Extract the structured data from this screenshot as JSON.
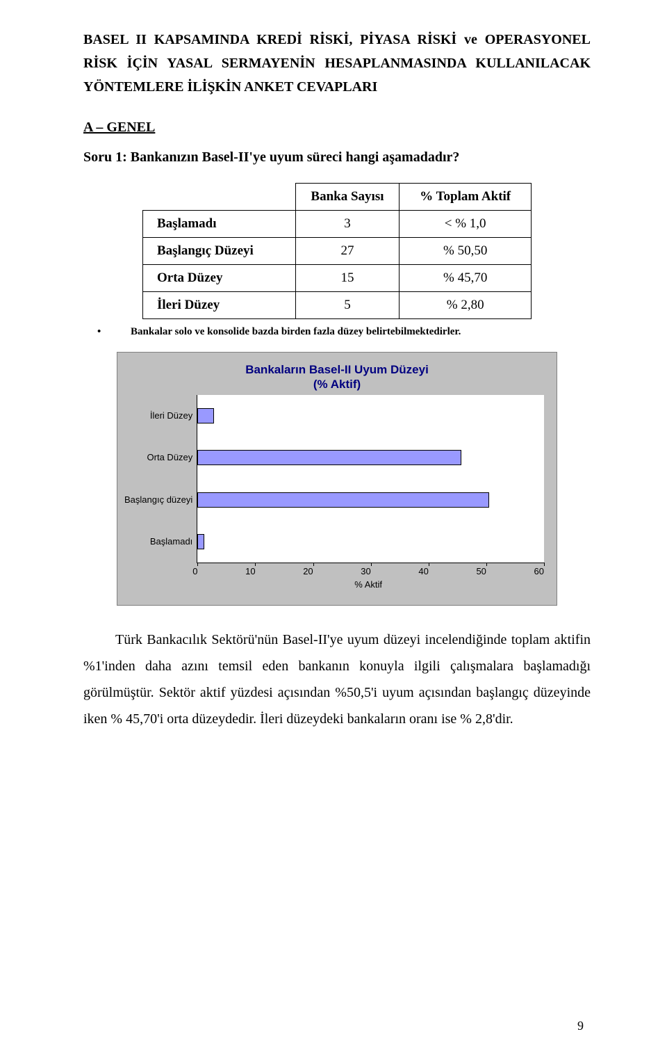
{
  "header": {
    "title_line1": "BASEL II KAPSAMINDA KREDİ RİSKİ, PİYASA RİSKİ ve OPERASYONEL RİSK İÇİN YASAL SERMAYENİN HESAPLANMASINDA KULLANILACAK YÖNTEMLERE İLİŞKİN ANKET CEVAPLARI"
  },
  "section": {
    "label": "A – GENEL"
  },
  "question1": {
    "text": "Soru 1: Bankanızın Basel-II'ye uyum süreci hangi aşamadadır?"
  },
  "table": {
    "col_headers": [
      "Banka Sayısı",
      "% Toplam Aktif"
    ],
    "rows": [
      {
        "label": "Başlamadı",
        "count": "3",
        "pct": "< % 1,0"
      },
      {
        "label": "Başlangıç Düzeyi",
        "count": "27",
        "pct": "% 50,50"
      },
      {
        "label": "Orta Düzey",
        "count": "15",
        "pct": "% 45,70"
      },
      {
        "label": "İleri Düzey",
        "count": "5",
        "pct": "% 2,80"
      }
    ]
  },
  "bullet_note": "Bankalar solo ve konsolide bazda birden fazla düzey belirtebilmektedirler.",
  "chart": {
    "type": "bar",
    "title_l1": "Bankaların Basel-II Uyum Düzeyi",
    "title_l2": "(% Aktif)",
    "categories": [
      "İleri Düzey",
      "Orta Düzey",
      "Başlangıç düzeyi",
      "Başlamadı"
    ],
    "values": [
      2.8,
      45.7,
      50.5,
      1.0
    ],
    "xmin": 0,
    "xmax": 60,
    "xtick_step": 10,
    "xticks": [
      "0",
      "10",
      "20",
      "30",
      "40",
      "50",
      "60"
    ],
    "x_title": "% Aktif",
    "bar_color": "#9999ff",
    "bar_border": "#000000",
    "plot_bg": "#ffffff",
    "panel_bg": "#c0c0c0",
    "title_color": "#000080",
    "label_fontsize": 13,
    "title_fontsize": 17
  },
  "body_paragraph": "Türk Bankacılık Sektörü'nün Basel-II'ye uyum düzeyi incelendiğinde toplam aktifin %1'inden daha azını temsil eden bankanın konuyla ilgili çalışmalara başlamadığı görülmüştür. Sektör aktif yüzdesi açısından %50,5'i uyum açısından başlangıç düzeyinde iken % 45,70'i orta düzeydedir. İleri düzeydeki bankaların oranı ise % 2,8'dir.",
  "page_number": "9"
}
